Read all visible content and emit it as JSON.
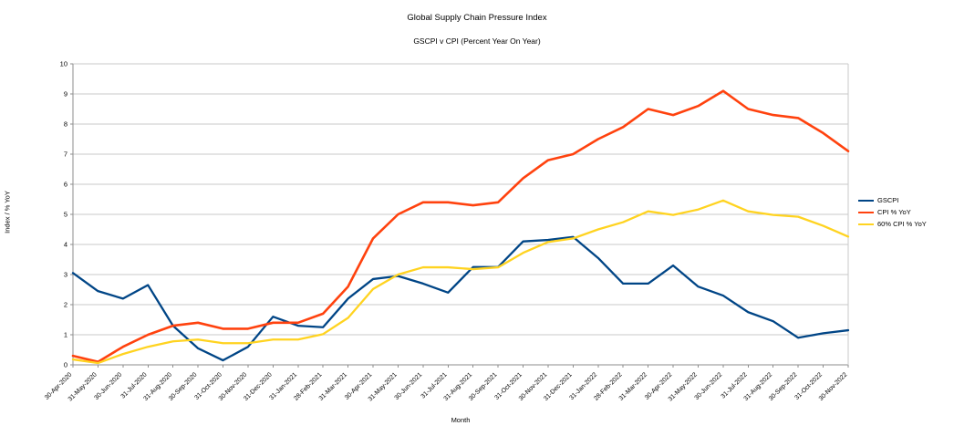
{
  "page": {
    "title": "Global Supply Chain Pressure Index",
    "subtitle": "GSCPI v CPI (Percent Year On Year)"
  },
  "chart_data": {
    "type": "line",
    "title": "Global Supply Chain Pressure Index",
    "subtitle": "GSCPI v CPI (Percent Year On Year)",
    "xlabel": "Month",
    "ylabel": "Index / % YoY",
    "ylim": [
      0,
      10
    ],
    "ytick_step": 1,
    "grid": true,
    "legend_position": "right",
    "categories": [
      "30-Apr-2020",
      "31-May-2020",
      "30-Jun-2020",
      "31-Jul-2020",
      "31-Aug-2020",
      "30-Sep-2020",
      "31-Oct-2020",
      "30-Nov-2020",
      "31-Dec-2020",
      "31-Jan-2021",
      "28-Feb-2021",
      "31-Mar-2021",
      "30-Apr-2021",
      "31-May-2021",
      "30-Jun-2021",
      "31-Jul-2021",
      "31-Aug-2021",
      "30-Sep-2021",
      "31-Oct-2021",
      "30-Nov-2021",
      "31-Dec-2021",
      "31-Jan-2022",
      "28-Feb-2022",
      "31-Mar-2022",
      "30-Apr-2022",
      "31-May-2022",
      "30-Jun-2022",
      "31-Jul-2022",
      "31-Aug-2022",
      "30-Sep-2022",
      "31-Oct-2022",
      "30-Nov-2022"
    ],
    "series": [
      {
        "name": "GSCPI",
        "color": "#004586",
        "width": 2.3,
        "values": [
          3.05,
          2.45,
          2.2,
          2.65,
          1.3,
          0.55,
          0.15,
          0.6,
          1.6,
          1.3,
          1.25,
          2.2,
          2.85,
          2.95,
          2.7,
          2.4,
          3.25,
          3.25,
          4.1,
          4.15,
          4.25,
          3.55,
          2.7,
          2.7,
          3.3,
          2.6,
          2.3,
          1.75,
          1.45,
          0.9,
          1.05,
          1.15
        ]
      },
      {
        "name": "CPI % YoY",
        "color": "#FF420E",
        "width": 2.6,
        "values": [
          0.3,
          0.1,
          0.6,
          1.0,
          1.3,
          1.4,
          1.2,
          1.2,
          1.4,
          1.4,
          1.7,
          2.6,
          4.2,
          5.0,
          5.4,
          5.4,
          5.3,
          5.4,
          6.2,
          6.8,
          7.0,
          7.5,
          7.9,
          8.5,
          8.3,
          8.6,
          9.1,
          8.5,
          8.3,
          8.2,
          7.7,
          7.1
        ]
      },
      {
        "name": "60% CPI % YoY",
        "color": "#FFD320",
        "width": 2.3,
        "values": [
          0.18,
          0.06,
          0.36,
          0.6,
          0.78,
          0.84,
          0.72,
          0.72,
          0.84,
          0.84,
          1.02,
          1.56,
          2.52,
          3.0,
          3.24,
          3.24,
          3.18,
          3.24,
          3.72,
          4.08,
          4.2,
          4.5,
          4.74,
          5.1,
          4.98,
          5.16,
          5.46,
          5.1,
          4.98,
          4.92,
          4.62,
          4.26
        ]
      }
    ]
  },
  "style": {
    "grid_color": "#C8C8C8",
    "axis_color": "#8E8E8E",
    "text_color": "#000000",
    "background": "#FFFFFF"
  }
}
